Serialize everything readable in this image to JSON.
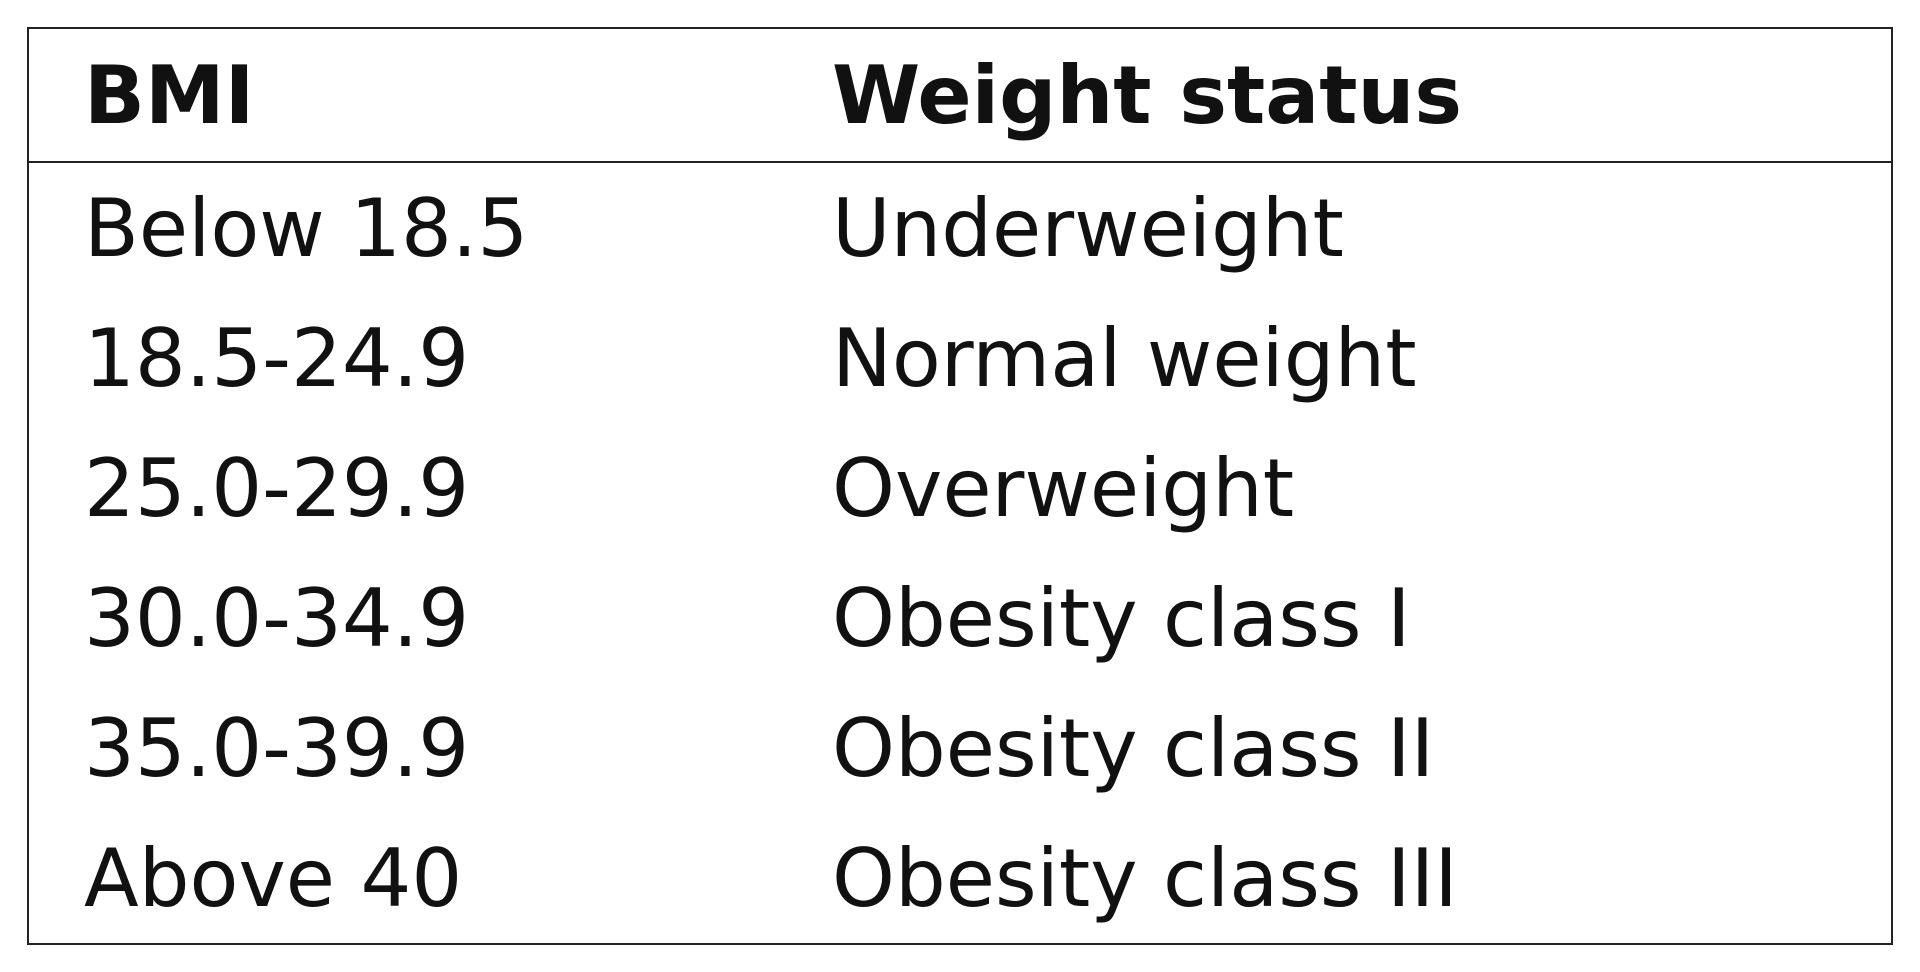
{
  "table": {
    "header": [
      "BMI",
      "Weight status"
    ],
    "rows": [
      [
        "Below 18.5",
        "Underweight"
      ],
      [
        "18.5-24.9",
        "Normal weight"
      ],
      [
        "25.0-29.9",
        "Overweight"
      ],
      [
        "30.0-34.9",
        "Obesity class I"
      ],
      [
        "35.0-39.9",
        "Obesity class II"
      ],
      [
        "Above 40",
        "Obesity class III"
      ]
    ]
  }
}
